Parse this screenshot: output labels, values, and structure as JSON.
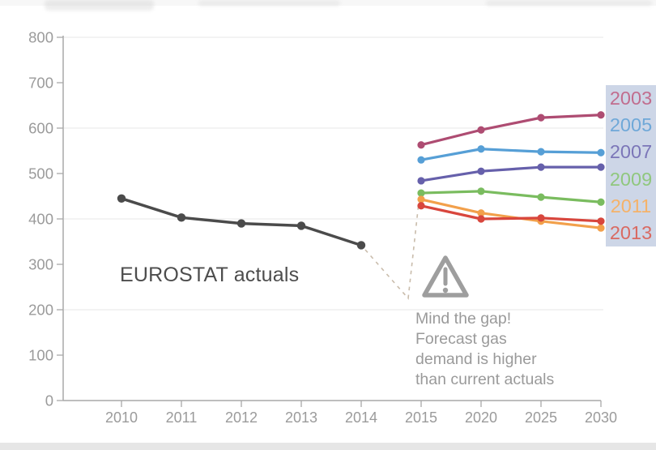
{
  "chart_data": {
    "type": "line",
    "title": "",
    "xlabel": "",
    "ylabel": "",
    "categories": [
      "2010",
      "2011",
      "2012",
      "2013",
      "2014",
      "2015",
      "2020",
      "2025",
      "2030"
    ],
    "ytick_labels": [
      "0",
      "100",
      "200",
      "300",
      "400",
      "500",
      "600",
      "700",
      "800"
    ],
    "yticks": [
      0,
      100,
      200,
      300,
      400,
      500,
      600,
      700,
      800
    ],
    "ylim": [
      0,
      800
    ],
    "grid_values": [
      200,
      400,
      600,
      800
    ],
    "legend_position": "right",
    "series": [
      {
        "name": "EUROSTAT actuals",
        "color": "#4b4b4b",
        "x": [
          "2010",
          "2011",
          "2012",
          "2013",
          "2014"
        ],
        "values": [
          445,
          403,
          390,
          385,
          342
        ]
      },
      {
        "name": "2003",
        "color": "#ae4c72",
        "x": [
          "2015",
          "2020",
          "2025",
          "2030"
        ],
        "values": [
          563,
          596,
          623,
          629
        ]
      },
      {
        "name": "2005",
        "color": "#569fd6",
        "x": [
          "2015",
          "2020",
          "2025",
          "2030"
        ],
        "values": [
          530,
          554,
          548,
          546
        ]
      },
      {
        "name": "2007",
        "color": "#6660ab",
        "x": [
          "2015",
          "2020",
          "2025",
          "2030"
        ],
        "values": [
          484,
          505,
          514,
          514
        ]
      },
      {
        "name": "2009",
        "color": "#7abc5f",
        "x": [
          "2015",
          "2020",
          "2025",
          "2030"
        ],
        "values": [
          457,
          461,
          448,
          437
        ]
      },
      {
        "name": "2011",
        "color": "#f2a04b",
        "x": [
          "2015",
          "2020",
          "2025",
          "2030"
        ],
        "values": [
          443,
          413,
          395,
          380
        ]
      },
      {
        "name": "2013",
        "color": "#d8463d",
        "x": [
          "2015",
          "2020",
          "2025",
          "2030"
        ],
        "values": [
          429,
          400,
          402,
          395
        ]
      }
    ]
  },
  "legend": {
    "bg_color": "#cdd6e7",
    "items": [
      {
        "label": "2003",
        "color": "#c16d8e"
      },
      {
        "label": "2005",
        "color": "#6fa8d8"
      },
      {
        "label": "2007",
        "color": "#7b76b8"
      },
      {
        "label": "2009",
        "color": "#90c77e"
      },
      {
        "label": "2011",
        "color": "#f5b269"
      },
      {
        "label": "2013",
        "color": "#d96a62"
      }
    ]
  },
  "annotations": {
    "eurostat_label": "EUROSTAT actuals",
    "mind_the_gap_lines": [
      "Mind the gap!",
      "Forecast gas",
      "demand is higher",
      "than current actuals"
    ],
    "warning_icon": "warning-triangle"
  },
  "colors": {
    "axis_line": "#a9a9a9",
    "axis_text": "#9b9b9b",
    "grid": "#efefef",
    "eurostat_text": "#4d4d4d",
    "mindgap_text": "#9a9a9a",
    "dashed_annotation": "#c9bcab",
    "warning_icon": "#9e9e9e"
  }
}
